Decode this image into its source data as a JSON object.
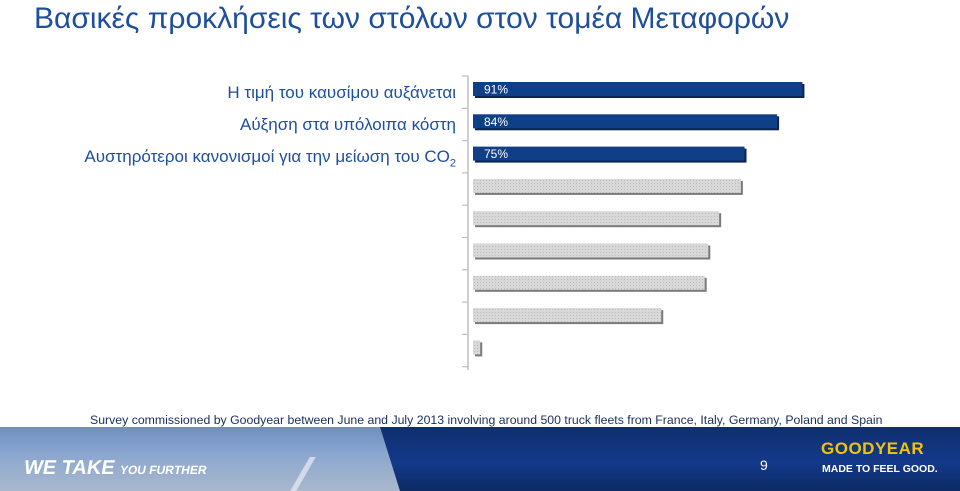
{
  "title": "Βασικές προκλήσεις των στόλων στον τομέα Μεταφορών",
  "colors": {
    "title": "#1f4e9c",
    "highlight_bar": "#0f3f86",
    "grey_bar": "#cfcfcf"
  },
  "chart_data": {
    "type": "bar",
    "orientation": "horizontal",
    "categories": [
      "Η τιμή του καυσίμου αυξάνεται",
      "Αύξηση στα υπόλοιπα κόστη",
      "Αυστηρότεροι κανονισμοί για την μείωση του CO2",
      "",
      "",
      "",
      "",
      "",
      ""
    ],
    "values": [
      91,
      84,
      75,
      74,
      68,
      65,
      64,
      52,
      2
    ],
    "labels": [
      "91%",
      "84%",
      "75%",
      "",
      "",
      "",
      "",
      "",
      ""
    ],
    "highlighted": [
      true,
      true,
      true,
      false,
      false,
      false,
      false,
      false,
      false
    ],
    "xlim": [
      0,
      100
    ],
    "grid": false
  },
  "category_labels": {
    "fuel": "Η τιμή του καυσίμου αυξάνεται",
    "other": "Αύξηση στα υπόλοιπα κόστη",
    "co2_main": "Αυστηρότεροι κανονισμοί για την μείωση του CO",
    "co2_sub": "2"
  },
  "source": "Survey commissioned by Goodyear  between June and July 2013 involving around 500 truck fleets from France, Italy, Germany, Poland and Spain",
  "footer": {
    "tagline_a": "WE TAKE ",
    "tagline_b": "YOU FURTHER",
    "page": "9",
    "brand": "GOODYEAR",
    "brand_tagline": "MADE TO FEEL GOOD."
  }
}
